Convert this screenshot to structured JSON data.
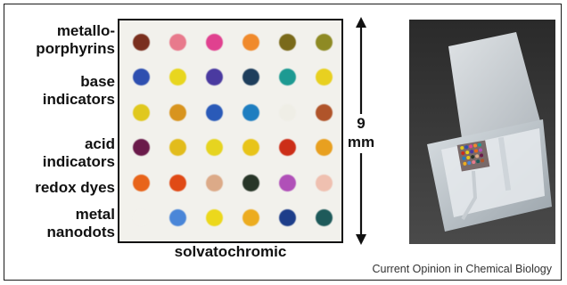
{
  "figure": {
    "row_labels": [
      {
        "line1": "metallo-",
        "line2": "porphyrins"
      },
      {
        "line1": "base",
        "line2": "indicators"
      },
      {
        "line1": "acid",
        "line2": "indicators"
      },
      {
        "line1": "redox dyes",
        "line2": ""
      },
      {
        "line1": "metal",
        "line2": "nanodots"
      }
    ],
    "array_caption": "solvatochromic",
    "scale_value": "9",
    "scale_unit": "mm",
    "credit": "Current Opinion in Chemical Biology"
  },
  "sensor_array": {
    "rows": [
      [
        "#7a2f1e",
        "#e87a8c",
        "#e0418f",
        "#f08a2c",
        "#7a6a1a",
        "#8e8a24"
      ],
      [
        "#2e4fb0",
        "#e8d61f",
        "#4a3aa0",
        "#1e3e5c",
        "#1d9a92",
        "#e8d020"
      ],
      [
        "#e0c81e",
        "#d8941e",
        "#2a5ab8",
        "#1f7ec0",
        "#efeee6",
        "#b0542a"
      ],
      [
        "#6a1a4a",
        "#e2bc1c",
        "#e6d420",
        "#e8c41a",
        "#cc2e18",
        "#e8a020"
      ],
      [
        "#e8641a",
        "#e04a16",
        "#dcaa88",
        "#283628",
        "#b050b8",
        "#efc0b0"
      ],
      [
        "#f2f1ec",
        "#4a86d8",
        "#ecd81c",
        "#ecac20",
        "#1e3e8a",
        "#1e5a5a"
      ]
    ]
  }
}
